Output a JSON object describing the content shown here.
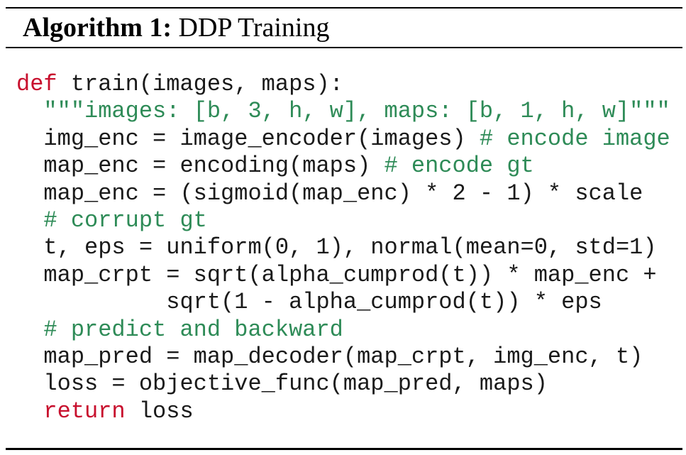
{
  "algorithm": {
    "label": "Algorithm 1:",
    "title": "DDP Training"
  },
  "code": [
    [
      {
        "t": "def",
        "s": "kw"
      },
      {
        "t": " train(images, maps):",
        "s": ""
      }
    ],
    [
      {
        "t": "  ",
        "s": ""
      },
      {
        "t": "\"\"\"images: [b, 3, h, w], maps: [b, 1, h, w]\"\"\"",
        "s": "str"
      }
    ],
    [
      {
        "t": "  img_enc = image_encoder(images) ",
        "s": ""
      },
      {
        "t": "# encode image",
        "s": "cm"
      }
    ],
    [
      {
        "t": "  map_enc = encoding(maps) ",
        "s": ""
      },
      {
        "t": "# encode gt",
        "s": "cm"
      }
    ],
    [
      {
        "t": "  map_enc = (sigmoid(map_enc) * 2 - 1) * scale",
        "s": ""
      }
    ],
    [
      {
        "t": "  ",
        "s": ""
      },
      {
        "t": "# corrupt gt",
        "s": "cm"
      }
    ],
    [
      {
        "t": "  t, eps = uniform(0, 1), normal(mean=0, std=1)",
        "s": ""
      }
    ],
    [
      {
        "t": "  map_crpt = sqrt(alpha_cumprod(t)) * map_enc +",
        "s": ""
      }
    ],
    [
      {
        "t": "           sqrt(1 - alpha_cumprod(t)) * eps",
        "s": ""
      }
    ],
    [
      {
        "t": "  ",
        "s": ""
      },
      {
        "t": "# predict and backward",
        "s": "cm"
      }
    ],
    [
      {
        "t": "  map_pred = map_decoder(map_crpt, img_enc, t)",
        "s": ""
      }
    ],
    [
      {
        "t": "  loss = objective_func(map_pred, maps)",
        "s": ""
      }
    ],
    [
      {
        "t": "  ",
        "s": ""
      },
      {
        "t": "return",
        "s": "kw"
      },
      {
        "t": " loss",
        "s": ""
      }
    ]
  ],
  "colors": {
    "keyword": "#c8102e",
    "comment": "#2e8b57",
    "text": "#1a1a1a"
  }
}
